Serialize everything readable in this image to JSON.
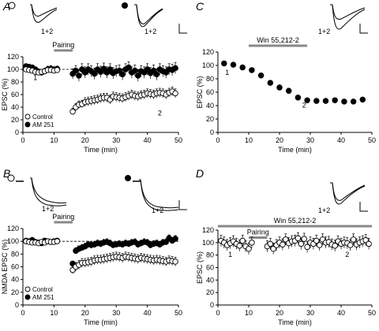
{
  "panels": [
    {
      "letter": "A",
      "trace_label_1": "1+2",
      "trace_label_2": "1+2"
    },
    {
      "letter": "C",
      "trace_label_1": "1+2"
    },
    {
      "letter": "B",
      "trace_label_1": "1+2",
      "trace_label_2": "1+2"
    },
    {
      "letter": "D",
      "trace_label_1": "1+2"
    }
  ],
  "chart_data": [
    {
      "panel": "A",
      "type": "scatter",
      "xlabel": "Time (min)",
      "ylabel": "EPSC (%)",
      "xlim": [
        0,
        50
      ],
      "ylim": [
        0,
        120
      ],
      "xticks": [
        0,
        10,
        20,
        30,
        40,
        50
      ],
      "yticks": [
        0,
        20,
        40,
        60,
        80,
        100,
        120
      ],
      "ref_line": 100,
      "bar": {
        "label": "Pairing",
        "x": [
          10,
          16
        ]
      },
      "annotations": [
        {
          "text": "1",
          "x": 4,
          "y": 83
        },
        {
          "text": "2",
          "x": 44,
          "y": 27
        }
      ],
      "legend": [
        "Control",
        "AM 251"
      ],
      "series": [
        {
          "name": "AM 251",
          "style": "filled",
          "x": [
            1,
            2,
            3,
            4,
            5,
            6,
            7,
            8,
            9,
            10,
            11,
            16,
            17,
            18,
            19,
            20,
            21,
            22,
            23,
            24,
            25,
            26,
            27,
            28,
            29,
            30,
            31,
            32,
            33,
            34,
            35,
            36,
            37,
            38,
            39,
            40,
            41,
            42,
            43,
            44,
            45,
            46,
            47,
            48,
            49
          ],
          "y": [
            105,
            104,
            103,
            100,
            96,
            95,
            97,
            100,
            101,
            100,
            101,
            93,
            98,
            90,
            100,
            95,
            100,
            97,
            93,
            100,
            96,
            101,
            95,
            100,
            94,
            97,
            98,
            92,
            100,
            103,
            95,
            98,
            90,
            97,
            95,
            100,
            94,
            98,
            92,
            100,
            97,
            95,
            100,
            99,
            102
          ],
          "err": [
            4,
            4,
            4,
            4,
            5,
            5,
            5,
            5,
            5,
            4,
            4,
            8,
            8,
            9,
            9,
            9,
            9,
            9,
            9,
            9,
            9,
            9,
            9,
            9,
            9,
            9,
            9,
            9,
            9,
            9,
            9,
            9,
            9,
            9,
            9,
            9,
            9,
            9,
            9,
            9,
            9,
            9,
            9,
            9,
            9
          ]
        },
        {
          "name": "Control",
          "style": "open",
          "x": [
            1,
            2,
            3,
            4,
            5,
            6,
            7,
            8,
            9,
            10,
            11,
            16,
            17,
            18,
            19,
            20,
            21,
            22,
            23,
            24,
            25,
            26,
            27,
            28,
            29,
            30,
            31,
            32,
            33,
            34,
            35,
            36,
            37,
            38,
            39,
            40,
            41,
            42,
            43,
            44,
            45,
            46,
            47,
            48,
            49
          ],
          "y": [
            100,
            99,
            98,
            96,
            95,
            96,
            97,
            99,
            99,
            98,
            99,
            33,
            40,
            44,
            45,
            48,
            49,
            50,
            51,
            52,
            54,
            55,
            55,
            52,
            57,
            56,
            55,
            54,
            56,
            58,
            60,
            58,
            57,
            59,
            60,
            62,
            61,
            60,
            62,
            63,
            62,
            60,
            63,
            65,
            62
          ],
          "err": [
            3,
            3,
            3,
            3,
            4,
            4,
            4,
            4,
            4,
            3,
            3,
            5,
            6,
            6,
            6,
            7,
            7,
            7,
            7,
            7,
            7,
            7,
            7,
            7,
            7,
            7,
            7,
            7,
            7,
            7,
            7,
            7,
            7,
            7,
            7,
            7,
            7,
            7,
            7,
            7,
            7,
            7,
            7,
            7,
            7
          ]
        }
      ]
    },
    {
      "panel": "C",
      "type": "scatter",
      "xlabel": "Time (min)",
      "ylabel": "EPSC (%)",
      "xlim": [
        0,
        50
      ],
      "ylim": [
        0,
        120
      ],
      "xticks": [
        0,
        10,
        20,
        30,
        40,
        50
      ],
      "yticks": [
        0,
        20,
        40,
        60,
        80,
        100,
        120
      ],
      "bar": {
        "label": "Win 55,212-2",
        "x": [
          10,
          29
        ]
      },
      "annotations": [
        {
          "text": "1",
          "x": 3,
          "y": 86
        },
        {
          "text": "2",
          "x": 28,
          "y": 37
        }
      ],
      "series": [
        {
          "name": "",
          "style": "filled",
          "x": [
            2,
            5,
            8,
            11,
            14,
            17,
            20,
            23,
            26,
            29,
            32,
            35,
            38,
            41,
            44,
            47
          ],
          "y": [
            103,
            101,
            97,
            93,
            85,
            74,
            67,
            62,
            52,
            48,
            47,
            47,
            48,
            46,
            46,
            49
          ],
          "err": [
            2,
            2,
            3,
            3,
            3,
            3,
            4,
            4,
            3,
            2,
            2,
            2,
            2,
            2,
            2,
            2
          ]
        }
      ]
    },
    {
      "panel": "B",
      "type": "scatter",
      "xlabel": "Time (min)",
      "ylabel": "NMDA EPSC (%)",
      "xlim": [
        0,
        50
      ],
      "ylim": [
        0,
        120
      ],
      "xticks": [
        0,
        10,
        20,
        30,
        40,
        50
      ],
      "yticks": [
        0,
        20,
        40,
        60,
        80,
        100,
        120
      ],
      "ref_line": 100,
      "bar": {
        "label": "Pairing",
        "x": [
          10,
          16
        ]
      },
      "legend": [
        "Control",
        "AM 251"
      ],
      "series": [
        {
          "name": "AM 251",
          "style": "filled",
          "x": [
            1,
            2,
            3,
            4,
            5,
            6,
            7,
            8,
            9,
            10,
            11,
            16,
            17,
            18,
            19,
            20,
            21,
            22,
            23,
            24,
            25,
            26,
            27,
            28,
            29,
            30,
            31,
            32,
            33,
            34,
            35,
            36,
            37,
            38,
            39,
            40,
            41,
            42,
            43,
            44,
            45,
            46,
            47,
            48,
            49
          ],
          "y": [
            101,
            100,
            102,
            99,
            98,
            97,
            101,
            100,
            99,
            100,
            101,
            65,
            85,
            88,
            90,
            92,
            95,
            94,
            95,
            97,
            96,
            98,
            99,
            97,
            94,
            95,
            96,
            95,
            97,
            96,
            98,
            99,
            95,
            97,
            99,
            98,
            94,
            96,
            97,
            95,
            98,
            99,
            105,
            101,
            104
          ],
          "err": [
            3,
            3,
            3,
            3,
            3,
            3,
            3,
            3,
            3,
            3,
            3,
            4,
            5,
            5,
            5,
            5,
            5,
            5,
            5,
            5,
            5,
            5,
            5,
            5,
            5,
            5,
            5,
            5,
            5,
            5,
            5,
            5,
            5,
            5,
            5,
            5,
            5,
            5,
            5,
            5,
            5,
            5,
            5,
            5,
            5
          ]
        },
        {
          "name": "Control",
          "style": "open",
          "x": [
            1,
            2,
            3,
            4,
            5,
            6,
            7,
            8,
            9,
            10,
            11,
            16,
            17,
            18,
            19,
            20,
            21,
            22,
            23,
            24,
            25,
            26,
            27,
            28,
            29,
            30,
            31,
            32,
            33,
            34,
            35,
            36,
            37,
            38,
            39,
            40,
            41,
            42,
            43,
            44,
            45,
            46,
            47,
            48,
            49
          ],
          "y": [
            100,
            99,
            98,
            98,
            97,
            99,
            98,
            100,
            99,
            99,
            100,
            55,
            60,
            63,
            66,
            66,
            67,
            68,
            70,
            71,
            71,
            72,
            73,
            74,
            75,
            76,
            75,
            74,
            76,
            75,
            74,
            73,
            72,
            74,
            73,
            72,
            71,
            70,
            71,
            70,
            69,
            68,
            70,
            69,
            68
          ],
          "err": [
            3,
            3,
            3,
            3,
            3,
            3,
            3,
            3,
            3,
            3,
            3,
            6,
            7,
            7,
            7,
            7,
            7,
            7,
            7,
            7,
            7,
            7,
            7,
            7,
            7,
            7,
            7,
            7,
            7,
            7,
            7,
            7,
            7,
            7,
            7,
            7,
            7,
            7,
            7,
            7,
            7,
            7,
            7,
            7,
            7
          ]
        }
      ]
    },
    {
      "panel": "D",
      "type": "scatter",
      "xlabel": "Time (min)",
      "ylabel": "EPSC (%)",
      "xlim": [
        0,
        50
      ],
      "ylim": [
        0,
        120
      ],
      "xticks": [
        0,
        10,
        20,
        30,
        40,
        50
      ],
      "yticks": [
        0,
        20,
        40,
        60,
        80,
        100,
        120
      ],
      "bar": {
        "label": "Win 55,212-2",
        "x": [
          0,
          50
        ]
      },
      "bar2": {
        "label": "Pairing",
        "x": [
          10,
          16
        ]
      },
      "annotations": [
        {
          "text": "1",
          "x": 4,
          "y": 77
        },
        {
          "text": "2",
          "x": 42,
          "y": 77
        }
      ],
      "series": [
        {
          "name": "",
          "style": "open",
          "x": [
            1,
            2,
            3,
            4,
            5,
            6,
            7,
            8,
            9,
            10,
            11,
            16,
            17,
            18,
            19,
            20,
            21,
            22,
            23,
            24,
            25,
            26,
            27,
            28,
            29,
            30,
            31,
            32,
            33,
            34,
            35,
            36,
            37,
            38,
            39,
            40,
            41,
            42,
            43,
            44,
            45,
            46,
            47,
            48,
            49
          ],
          "y": [
            103,
            100,
            96,
            99,
            102,
            98,
            95,
            103,
            94,
            90,
            100,
            94,
            98,
            90,
            96,
            100,
            97,
            105,
            99,
            102,
            103,
            107,
            98,
            106,
            93,
            100,
            98,
            103,
            96,
            105,
            100,
            101,
            97,
            95,
            102,
            98,
            100,
            99,
            96,
            105,
            97,
            100,
            102,
            104,
            98
          ],
          "err": [
            9,
            9,
            9,
            9,
            9,
            9,
            9,
            9,
            9,
            9,
            9,
            9,
            9,
            9,
            9,
            9,
            9,
            9,
            9,
            9,
            9,
            9,
            9,
            9,
            9,
            9,
            9,
            9,
            9,
            9,
            9,
            9,
            9,
            9,
            9,
            9,
            9,
            9,
            9,
            9,
            9,
            9,
            9,
            9,
            9
          ]
        }
      ]
    }
  ]
}
